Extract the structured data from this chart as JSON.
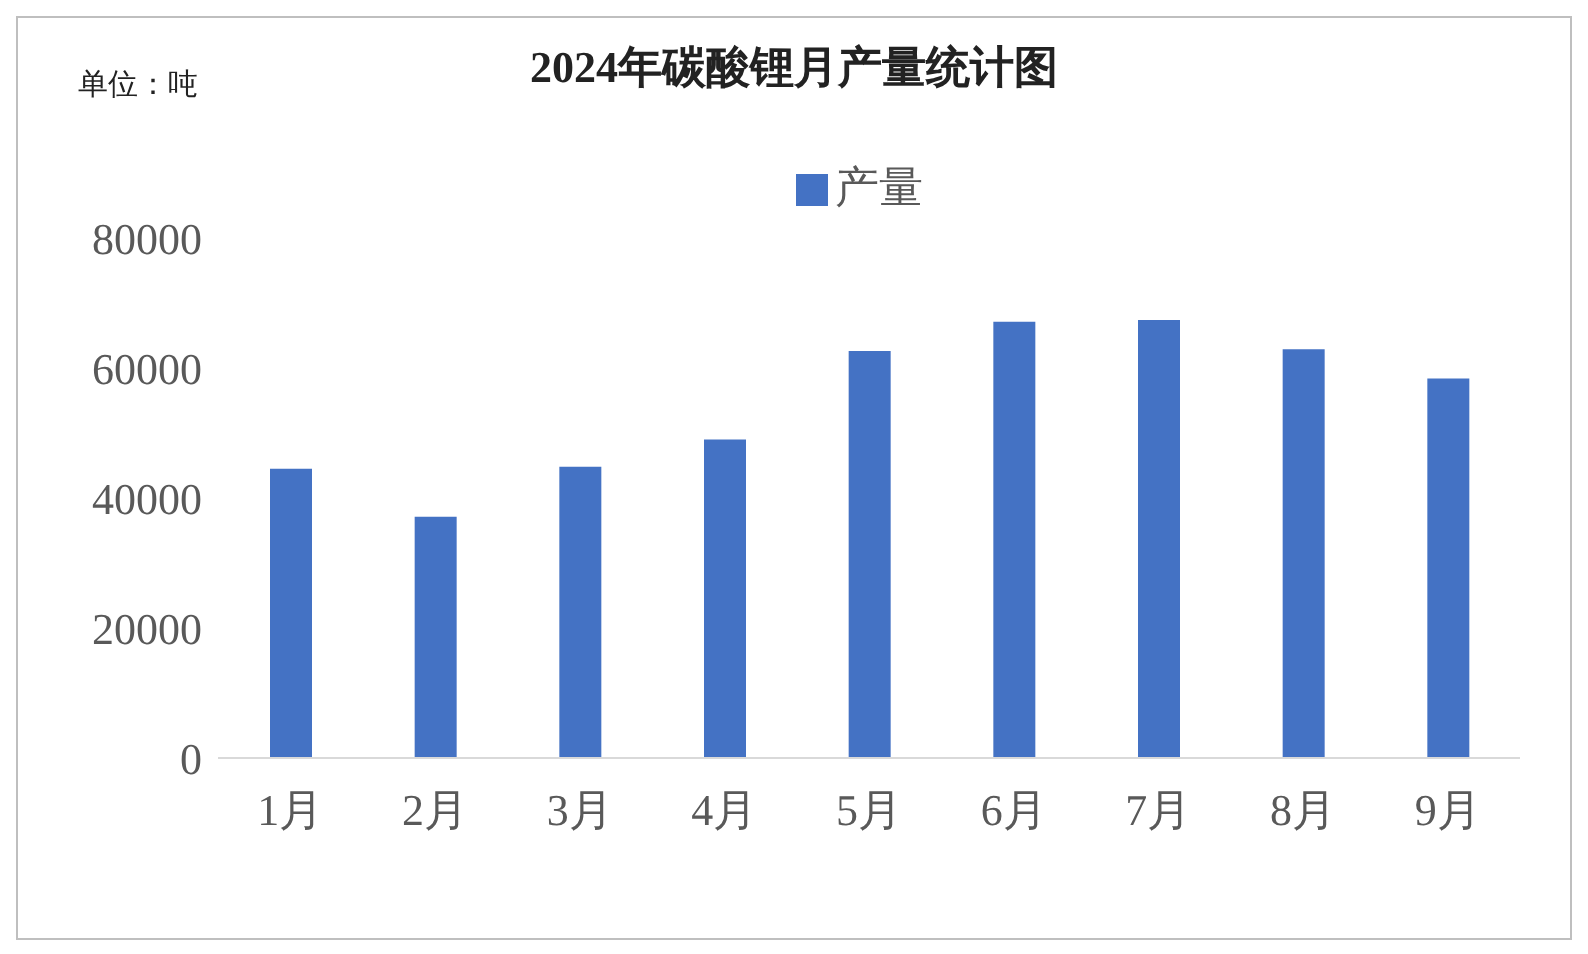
{
  "chart_data": {
    "type": "bar",
    "title": "2024年碳酸锂月产量统计图",
    "annotations": [
      "单位：吨"
    ],
    "categories": [
      "1月",
      "2月",
      "3月",
      "4月",
      "5月",
      "6月",
      "7月",
      "8月",
      "9月"
    ],
    "series": [
      {
        "name": "产量",
        "color": "#4472c4",
        "values": [
          44500,
          37100,
          44800,
          49000,
          62600,
          67100,
          67400,
          62900,
          58400
        ]
      }
    ],
    "ylim": [
      0,
      80000
    ],
    "yticks": [
      0,
      20000,
      40000,
      60000,
      80000
    ],
    "grid": false,
    "legend": "top"
  }
}
